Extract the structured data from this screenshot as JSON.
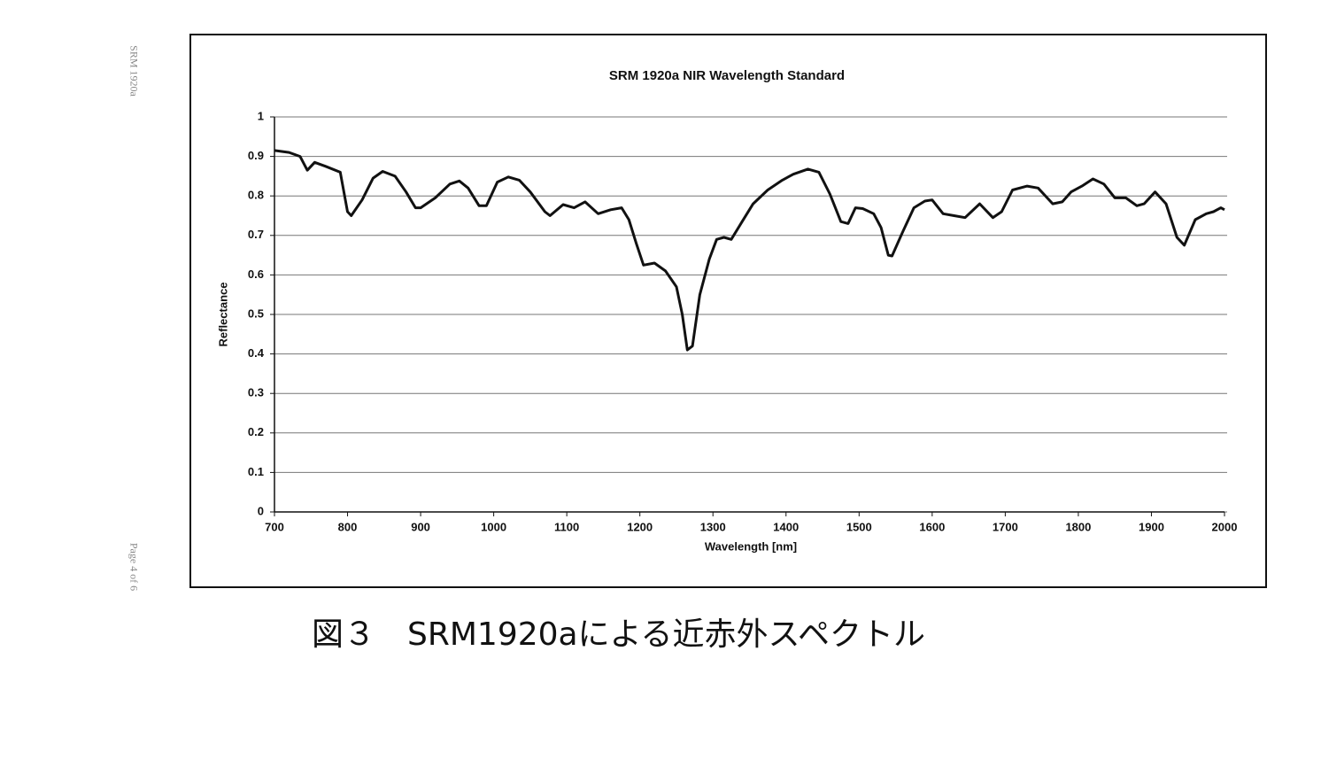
{
  "side_labels": [
    "SRM 1920a",
    "Page 4 of 6"
  ],
  "caption": "図３　SRM1920aによる近赤外スペクトル",
  "chart_data": {
    "type": "line",
    "title": "SRM 1920a NIR Wavelength Standard",
    "x_label": "Wavelength [nm]",
    "y_label": "Reflectance",
    "color": "#111111",
    "grid": true,
    "x": [
      700,
      720,
      735,
      745,
      755,
      770,
      790,
      800,
      805,
      820,
      835,
      848,
      865,
      880,
      893,
      900,
      920,
      940,
      953,
      965,
      980,
      990,
      1005,
      1020,
      1035,
      1050,
      1070,
      1077,
      1095,
      1110,
      1125,
      1143,
      1160,
      1175,
      1185,
      1195,
      1205,
      1220,
      1235,
      1250,
      1258,
      1265,
      1272,
      1282,
      1295,
      1305,
      1315,
      1325,
      1340,
      1355,
      1375,
      1395,
      1410,
      1430,
      1445,
      1460,
      1475,
      1485,
      1495,
      1505,
      1520,
      1530,
      1540,
      1545,
      1560,
      1575,
      1590,
      1600,
      1615,
      1630,
      1645,
      1665,
      1683,
      1695,
      1710,
      1730,
      1745,
      1765,
      1778,
      1790,
      1805,
      1820,
      1835,
      1850,
      1865,
      1880,
      1890,
      1905,
      1920,
      1935,
      1945,
      1960,
      1975,
      1985,
      1995,
      2000
    ],
    "values": [
      0.915,
      0.91,
      0.9,
      0.865,
      0.885,
      0.875,
      0.86,
      0.76,
      0.75,
      0.79,
      0.845,
      0.862,
      0.85,
      0.81,
      0.77,
      0.77,
      0.795,
      0.83,
      0.838,
      0.82,
      0.775,
      0.775,
      0.835,
      0.848,
      0.84,
      0.81,
      0.76,
      0.75,
      0.778,
      0.77,
      0.785,
      0.755,
      0.765,
      0.77,
      0.74,
      0.68,
      0.625,
      0.63,
      0.61,
      0.57,
      0.5,
      0.41,
      0.42,
      0.55,
      0.64,
      0.69,
      0.695,
      0.69,
      0.735,
      0.78,
      0.815,
      0.84,
      0.855,
      0.868,
      0.86,
      0.805,
      0.735,
      0.73,
      0.77,
      0.768,
      0.755,
      0.72,
      0.65,
      0.648,
      0.71,
      0.77,
      0.787,
      0.79,
      0.755,
      0.75,
      0.745,
      0.78,
      0.745,
      0.76,
      0.815,
      0.825,
      0.82,
      0.78,
      0.785,
      0.81,
      0.825,
      0.843,
      0.83,
      0.795,
      0.795,
      0.775,
      0.78,
      0.81,
      0.78,
      0.695,
      0.675,
      0.74,
      0.755,
      0.76,
      0.77,
      0.765
    ],
    "xlim": [
      700,
      2000
    ],
    "xticks": [
      700,
      800,
      900,
      1000,
      1100,
      1200,
      1300,
      1400,
      1500,
      1600,
      1700,
      1800,
      1900,
      2000
    ],
    "ylim": [
      0,
      1
    ],
    "yticks": [
      0,
      0.1,
      0.2,
      0.3,
      0.4,
      0.5,
      0.6,
      0.7,
      0.8,
      0.9,
      1
    ]
  }
}
